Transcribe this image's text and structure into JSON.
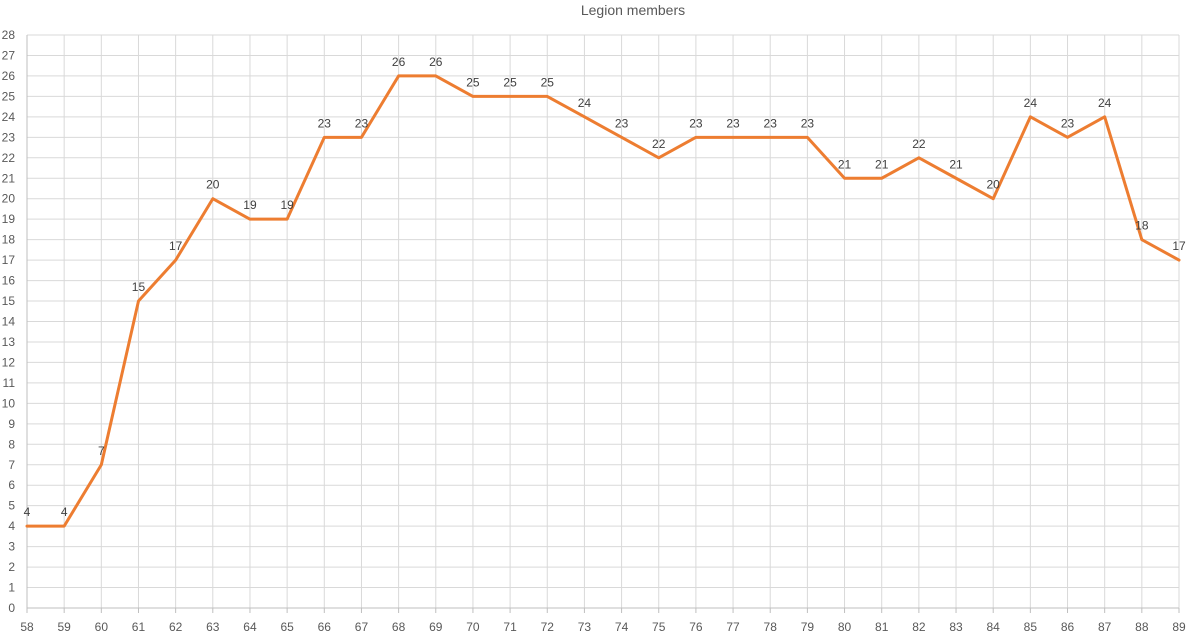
{
  "chart_data": {
    "type": "line",
    "title": "Legion members",
    "xlabel": "",
    "ylabel": "",
    "x": [
      "58",
      "59",
      "60",
      "61",
      "62",
      "63",
      "64",
      "65",
      "66",
      "67",
      "68",
      "69",
      "70",
      "71",
      "72",
      "73",
      "74",
      "75",
      "76",
      "77",
      "78",
      "79",
      "80",
      "81",
      "82",
      "83",
      "84",
      "85",
      "86",
      "87",
      "88",
      "89"
    ],
    "series": [
      {
        "values": [
          4,
          4,
          7,
          15,
          17,
          20,
          19,
          19,
          23,
          23,
          26,
          26,
          25,
          25,
          25,
          24,
          23,
          22,
          23,
          23,
          23,
          23,
          21,
          21,
          22,
          21,
          20,
          24,
          23,
          24,
          18,
          17
        ]
      }
    ],
    "ylim": [
      0,
      28
    ],
    "y_ticks": [
      0,
      1,
      2,
      3,
      4,
      5,
      6,
      7,
      8,
      9,
      10,
      11,
      12,
      13,
      14,
      15,
      16,
      17,
      18,
      19,
      20,
      21,
      22,
      23,
      24,
      25,
      26,
      27,
      28
    ],
    "grid": true,
    "legend": "none",
    "data_labels": true,
    "line_color": "#ED7D31"
  }
}
